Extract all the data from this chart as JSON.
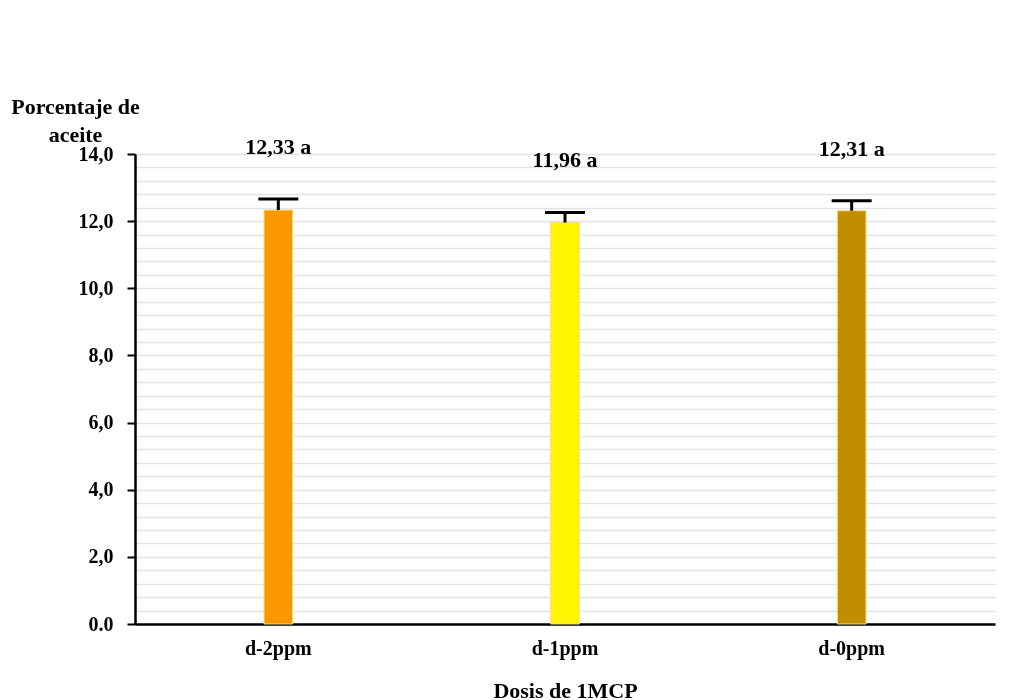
{
  "chart_data": {
    "type": "bar",
    "xlabel": "Dosis de 1MCP",
    "ylabel": "Porcentaje de aceite",
    "categories": [
      "d-2ppm",
      "d-1ppm",
      "d-0ppm"
    ],
    "values": [
      12.33,
      11.96,
      12.31
    ],
    "colors": [
      "#fb9800",
      "#fff500",
      "#c08e00"
    ],
    "errors": [
      0.33,
      0.3,
      0.3
    ],
    "value_labels": [
      "12,33 a",
      "11,96 a",
      "12,31 a"
    ],
    "ylim": [
      0,
      14
    ],
    "yticks": [
      {
        "value": 0,
        "label": "0.0"
      },
      {
        "value": 0.4,
        "label": null
      },
      {
        "value": 0.8,
        "label": null
      },
      {
        "value": 1.2,
        "label": null
      },
      {
        "value": 1.6,
        "label": null
      },
      {
        "value": 2,
        "label": "2,0"
      },
      {
        "value": 2.4,
        "label": null
      },
      {
        "value": 2.8,
        "label": null
      },
      {
        "value": 3.2,
        "label": null
      },
      {
        "value": 3.6,
        "label": null
      },
      {
        "value": 4,
        "label": "4,0"
      },
      {
        "value": 4.4,
        "label": null
      },
      {
        "value": 4.8,
        "label": null
      },
      {
        "value": 5.2,
        "label": null
      },
      {
        "value": 5.6,
        "label": null
      },
      {
        "value": 6,
        "label": "6,0"
      },
      {
        "value": 6.4,
        "label": null
      },
      {
        "value": 6.8,
        "label": null
      },
      {
        "value": 7.2,
        "label": null
      },
      {
        "value": 7.6,
        "label": null
      },
      {
        "value": 8,
        "label": "8,0"
      },
      {
        "value": 8.4,
        "label": null
      },
      {
        "value": 8.8,
        "label": null
      },
      {
        "value": 9.2,
        "label": null
      },
      {
        "value": 9.6,
        "label": null
      },
      {
        "value": 10,
        "label": "10,0"
      },
      {
        "value": 10.4,
        "label": null
      },
      {
        "value": 10.8,
        "label": null
      },
      {
        "value": 11.2,
        "label": null
      },
      {
        "value": 11.6,
        "label": null
      },
      {
        "value": 12,
        "label": "12,0"
      },
      {
        "value": 12.4,
        "label": null
      },
      {
        "value": 12.8,
        "label": null
      },
      {
        "value": 13.2,
        "label": null
      },
      {
        "value": 13.6,
        "label": null
      },
      {
        "value": 14,
        "label": "14,0"
      }
    ],
    "grid": "y"
  }
}
